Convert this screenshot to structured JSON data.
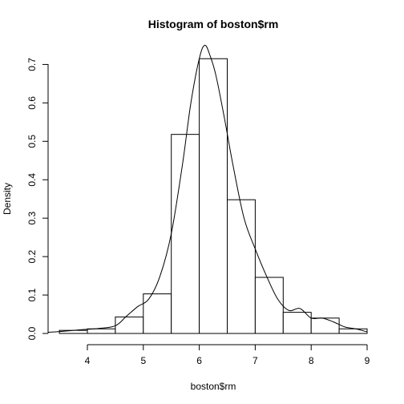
{
  "chart_data": {
    "type": "bar",
    "subtype": "histogram-with-density",
    "title": "Histogram of boston$rm",
    "xlabel": "boston$rm",
    "ylabel": "Density",
    "xlim": [
      3.3,
      9.0
    ],
    "ylim": [
      0,
      0.74
    ],
    "x_ticks": [
      "4",
      "5",
      "6",
      "7",
      "8",
      "9"
    ],
    "y_ticks": [
      "0.0",
      "0.1",
      "0.2",
      "0.3",
      "0.4",
      "0.5",
      "0.6",
      "0.7"
    ],
    "grid": false,
    "legend": "none",
    "bins": [
      {
        "start": 3.5,
        "end": 4.0,
        "density": 0.008
      },
      {
        "start": 4.0,
        "end": 4.5,
        "density": 0.012
      },
      {
        "start": 4.5,
        "end": 5.0,
        "density": 0.043
      },
      {
        "start": 5.0,
        "end": 5.5,
        "density": 0.103
      },
      {
        "start": 5.5,
        "end": 6.0,
        "density": 0.518
      },
      {
        "start": 6.0,
        "end": 6.5,
        "density": 0.715
      },
      {
        "start": 6.5,
        "end": 7.0,
        "density": 0.348
      },
      {
        "start": 7.0,
        "end": 7.5,
        "density": 0.146
      },
      {
        "start": 7.5,
        "end": 8.0,
        "density": 0.055
      },
      {
        "start": 8.0,
        "end": 8.5,
        "density": 0.04
      },
      {
        "start": 8.5,
        "end": 9.0,
        "density": 0.012
      }
    ],
    "density_curve": {
      "x": [
        3.3,
        3.6,
        3.9,
        4.2,
        4.5,
        4.7,
        4.9,
        5.1,
        5.3,
        5.5,
        5.7,
        5.85,
        6.0,
        6.1,
        6.2,
        6.3,
        6.45,
        6.6,
        6.8,
        7.0,
        7.2,
        7.4,
        7.6,
        7.8,
        8.0,
        8.2,
        8.4,
        8.6,
        8.8,
        9.0
      ],
      "y": [
        0.003,
        0.006,
        0.01,
        0.013,
        0.02,
        0.045,
        0.07,
        0.09,
        0.15,
        0.26,
        0.44,
        0.6,
        0.715,
        0.75,
        0.72,
        0.67,
        0.56,
        0.44,
        0.3,
        0.22,
        0.15,
        0.09,
        0.06,
        0.065,
        0.04,
        0.04,
        0.03,
        0.017,
        0.012,
        0.004
      ]
    }
  }
}
